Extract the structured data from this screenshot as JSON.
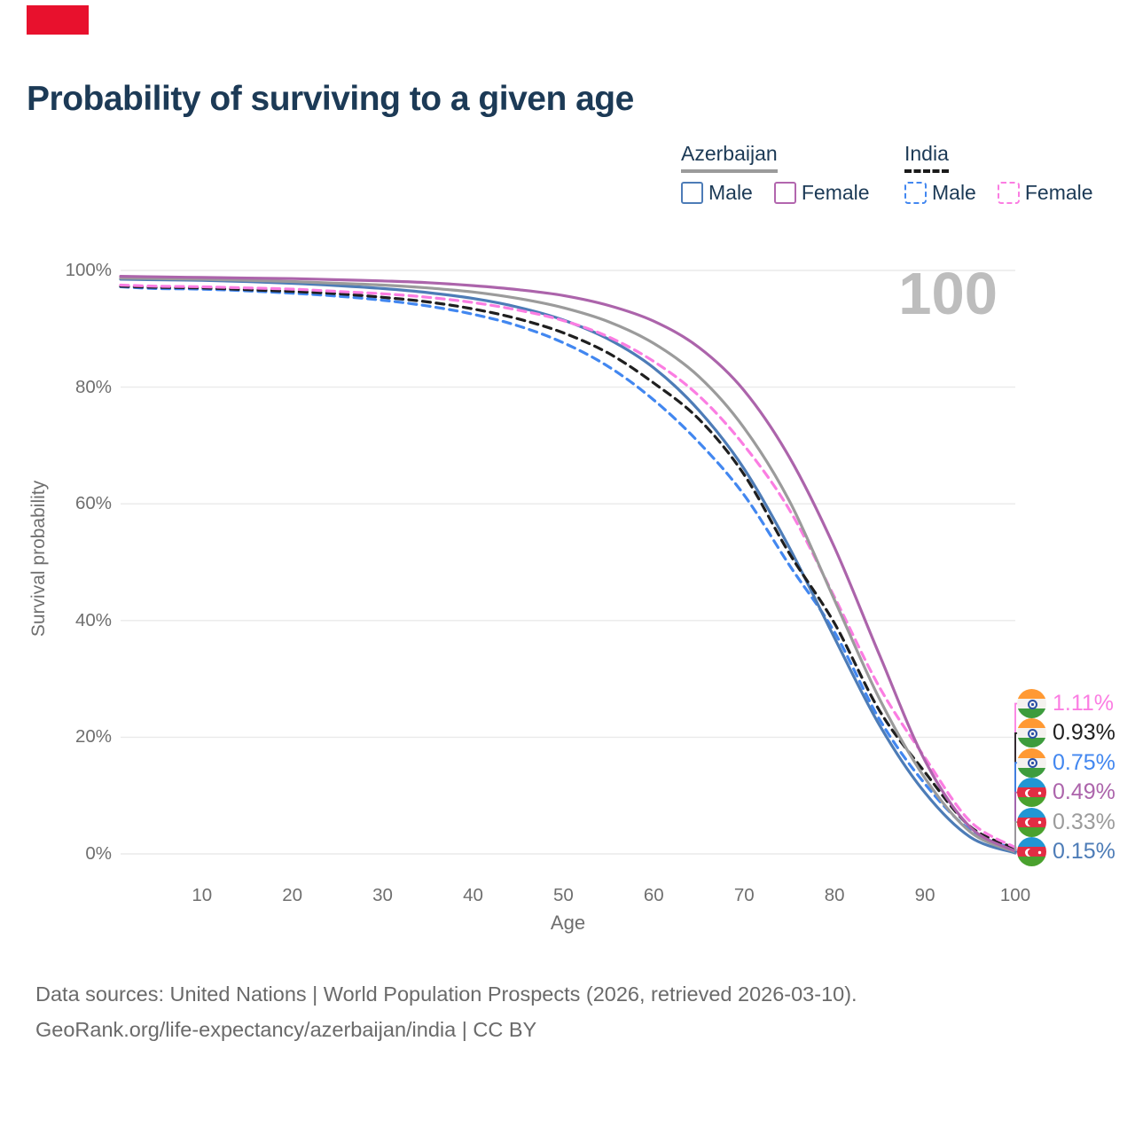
{
  "page": {
    "background": "#ffffff",
    "marker_color": "#e8112d"
  },
  "header": {
    "title": "Probability of surviving to a given age",
    "title_color": "#1c3a56"
  },
  "legend": {
    "groups": [
      {
        "label": "Azerbaijan",
        "underline_style": "solid",
        "underline_color": "#9b9b9b",
        "items": [
          {
            "label": "Male",
            "color": "#4d7cb7",
            "dashed": false
          },
          {
            "label": "Female",
            "color": "#b266ae",
            "dashed": false
          }
        ]
      },
      {
        "label": "India",
        "underline_style": "dashed",
        "underline_color": "#1a1a1a",
        "items": [
          {
            "label": "Male",
            "color": "#4287f0",
            "dashed": true
          },
          {
            "label": "Female",
            "color": "#fb7de2",
            "dashed": true
          }
        ]
      }
    ]
  },
  "chart_data": {
    "type": "line",
    "title": "Probability of surviving to a given age",
    "xlabel": "Age",
    "ylabel": "Survival probability",
    "xlim": [
      1,
      100
    ],
    "ylim": [
      0,
      100
    ],
    "grid": "horizontal",
    "legend_position": "top-right",
    "watermark": "100",
    "x_ticks": [
      10,
      20,
      30,
      40,
      50,
      60,
      70,
      80,
      90,
      100
    ],
    "y_ticks": [
      0,
      20,
      40,
      60,
      80,
      100
    ],
    "y_tick_labels": [
      "0%",
      "20%",
      "40%",
      "60%",
      "80%",
      "100%"
    ],
    "x": [
      1,
      5,
      10,
      15,
      20,
      25,
      30,
      35,
      40,
      45,
      50,
      55,
      60,
      65,
      70,
      75,
      80,
      85,
      90,
      95,
      100
    ],
    "series": [
      {
        "name": "India Male",
        "color": "#4287f0",
        "style": "dashed",
        "values": [
          97.2,
          96.9,
          96.8,
          96.5,
          96.1,
          95.6,
          94.9,
          93.9,
          92.5,
          90.5,
          87.6,
          83.5,
          77.8,
          70.5,
          61.5,
          49.5,
          38.0,
          23.0,
          12.0,
          4.1,
          0.75
        ]
      },
      {
        "name": "Azerbaijan Male",
        "color": "#4d7cb7",
        "style": "solid",
        "values": [
          98.5,
          98.4,
          98.3,
          98.1,
          97.8,
          97.4,
          96.9,
          96.2,
          95.2,
          93.7,
          91.5,
          88.2,
          83.3,
          76.0,
          66.0,
          52.5,
          37.0,
          22.0,
          10.5,
          2.9,
          0.15
        ]
      },
      {
        "name": "India Total",
        "color": "#1f1f1f",
        "style": "dashed",
        "values": [
          97.3,
          97.1,
          97.0,
          96.7,
          96.4,
          96.0,
          95.4,
          94.6,
          93.4,
          91.7,
          89.3,
          85.8,
          80.7,
          74.5,
          65.0,
          51.5,
          39.5,
          24.5,
          14.0,
          4.7,
          0.93
        ]
      },
      {
        "name": "India Female",
        "color": "#fb7de2",
        "style": "dashed",
        "values": [
          97.5,
          97.3,
          97.2,
          97.0,
          96.8,
          96.4,
          96.0,
          95.4,
          94.5,
          93.2,
          91.4,
          88.6,
          84.4,
          78.5,
          70.0,
          59.0,
          44.0,
          28.5,
          16.5,
          5.6,
          1.11
        ]
      },
      {
        "name": "Azerbaijan Total",
        "color": "#9b9b9b",
        "style": "solid",
        "values": [
          98.7,
          98.6,
          98.5,
          98.3,
          98.1,
          97.8,
          97.5,
          97.0,
          96.3,
          95.2,
          93.6,
          91.2,
          87.5,
          81.8,
          73.0,
          60.5,
          43.5,
          26.5,
          13.0,
          3.8,
          0.33
        ]
      },
      {
        "name": "Azerbaijan Female",
        "color": "#ac64ab",
        "style": "solid",
        "values": [
          99.0,
          98.9,
          98.8,
          98.7,
          98.6,
          98.4,
          98.2,
          97.9,
          97.4,
          96.7,
          95.7,
          94.0,
          91.3,
          86.8,
          79.4,
          68.0,
          52.5,
          34.0,
          16.0,
          4.6,
          0.49
        ]
      }
    ]
  },
  "end_labels": [
    {
      "series": "India Female",
      "value": "1.11%",
      "color": "#fb7de2",
      "flag": "india"
    },
    {
      "series": "India Total",
      "value": "0.93%",
      "color": "#1f1f1f",
      "flag": "india"
    },
    {
      "series": "India Male",
      "value": "0.75%",
      "color": "#4287f0",
      "flag": "india"
    },
    {
      "series": "Azerbaijan Female",
      "value": "0.49%",
      "color": "#ac64ab",
      "flag": "azerbaijan"
    },
    {
      "series": "Azerbaijan Total",
      "value": "0.33%",
      "color": "#9b9b9b",
      "flag": "azerbaijan"
    },
    {
      "series": "Azerbaijan Male",
      "value": "0.15%",
      "color": "#4d7cb7",
      "flag": "azerbaijan"
    }
  ],
  "footer": {
    "line1": "Data sources: United Nations | World Population Prospects (2026, retrieved 2026-03-10).",
    "line2": "GeoRank.org/life-expectancy/azerbaijan/india | CC BY"
  }
}
